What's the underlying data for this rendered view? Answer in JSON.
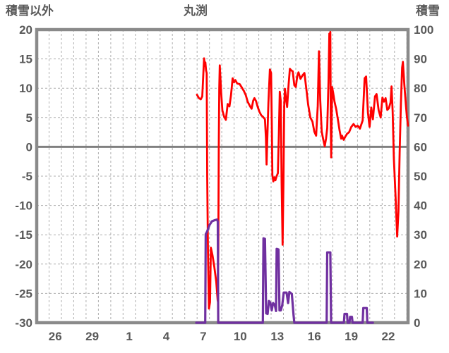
{
  "header": {
    "left_axis_label": "積雪以外",
    "title": "丸渕",
    "right_axis_label": "積雪"
  },
  "colors": {
    "red_series": "#FF0000",
    "purple_series": "#7030A0",
    "axis_frame": "#8A8A8A",
    "gridline": "#AFAFAF",
    "zero_line": "#808080",
    "tick_text": "#595959",
    "background": "#FFFFFF"
  },
  "chart_data": {
    "type": "line",
    "title": "丸渕",
    "grid": true,
    "legend": "none",
    "x_axis": {
      "range": [
        0,
        30.1
      ],
      "gridline_positions": [
        1,
        2,
        3,
        4,
        5,
        6,
        7,
        8,
        9,
        10,
        11,
        12,
        13,
        14,
        15,
        16,
        17,
        18,
        19,
        20,
        21,
        22,
        23,
        24,
        25,
        26,
        27,
        28,
        29,
        30
      ],
      "tick_positions": [
        1.5,
        4.5,
        7.5,
        10.5,
        13.5,
        16.5,
        19.5,
        22.5,
        25.5,
        28.5
      ],
      "tick_labels": [
        "26",
        "29",
        "1",
        "4",
        "7",
        "10",
        "13",
        "16",
        "19",
        "22"
      ]
    },
    "y_left": {
      "label": "積雪以外",
      "range": [
        -30,
        20
      ],
      "ticks": [
        20,
        15,
        10,
        5,
        0,
        -5,
        -10,
        -15,
        -20,
        -25,
        -30
      ],
      "zero_line": 0
    },
    "y_right": {
      "label": "積雪",
      "range": [
        0,
        100
      ],
      "ticks": [
        100,
        90,
        80,
        70,
        60,
        50,
        40,
        30,
        20,
        10,
        0
      ]
    },
    "series": [
      {
        "name": "sekisetsu-igai-red",
        "axis": "left",
        "color": "#FF0000",
        "width": 2.8,
        "points": [
          [
            12.99,
            8.9
          ],
          [
            13.15,
            8.3
          ],
          [
            13.3,
            8.1
          ],
          [
            13.42,
            8.6
          ],
          [
            13.52,
            13.2
          ],
          [
            13.57,
            15.1
          ],
          [
            13.62,
            13.8
          ],
          [
            13.67,
            14.4
          ],
          [
            13.73,
            13.0
          ],
          [
            13.78,
            12.6
          ],
          [
            13.82,
            -5
          ],
          [
            13.88,
            -18
          ],
          [
            13.96,
            -27.6
          ],
          [
            14.05,
            -26.5
          ],
          [
            14.12,
            -17.2
          ],
          [
            14.25,
            -18.5
          ],
          [
            14.4,
            -20.5
          ],
          [
            14.55,
            -23
          ],
          [
            14.67,
            -26.3
          ],
          [
            14.72,
            -18
          ],
          [
            14.76,
            0
          ],
          [
            14.8,
            10
          ],
          [
            14.84,
            13.9
          ],
          [
            14.95,
            9.2
          ],
          [
            15.05,
            6.2
          ],
          [
            15.2,
            5.1
          ],
          [
            15.33,
            4.6
          ],
          [
            15.48,
            7.3
          ],
          [
            15.62,
            6.9
          ],
          [
            15.75,
            8.8
          ],
          [
            15.88,
            11.7
          ],
          [
            16.0,
            11.0
          ],
          [
            16.1,
            11.4
          ],
          [
            16.25,
            10.8
          ],
          [
            16.45,
            10.7
          ],
          [
            16.6,
            10.2
          ],
          [
            16.8,
            9.5
          ],
          [
            16.95,
            8.8
          ],
          [
            17.1,
            7.7
          ],
          [
            17.3,
            6.9
          ],
          [
            17.42,
            6.5
          ],
          [
            17.55,
            7.9
          ],
          [
            17.65,
            8.3
          ],
          [
            17.78,
            7.8
          ],
          [
            17.9,
            6.9
          ],
          [
            18.05,
            6.0
          ],
          [
            18.2,
            5.4
          ],
          [
            18.35,
            5.1
          ],
          [
            18.5,
            4.7
          ],
          [
            18.58,
            1.5
          ],
          [
            18.63,
            -3.0
          ],
          [
            18.68,
            0.5
          ],
          [
            18.78,
            7.5
          ],
          [
            18.9,
            13.2
          ],
          [
            19.0,
            12.6
          ],
          [
            19.06,
            3
          ],
          [
            19.1,
            -4.8
          ],
          [
            19.18,
            -5.9
          ],
          [
            19.27,
            -5.2
          ],
          [
            19.35,
            -5.7
          ],
          [
            19.45,
            -5.0
          ],
          [
            19.55,
            -4.5
          ],
          [
            19.63,
            2
          ],
          [
            19.7,
            9.4
          ],
          [
            19.78,
            7.8
          ],
          [
            19.85,
            -6
          ],
          [
            19.93,
            -16.7
          ],
          [
            20.0,
            -6
          ],
          [
            20.06,
            7
          ],
          [
            20.12,
            9.9
          ],
          [
            20.2,
            8.4
          ],
          [
            20.3,
            6.8
          ],
          [
            20.42,
            10.6
          ],
          [
            20.52,
            13.3
          ],
          [
            20.65,
            13.0
          ],
          [
            20.75,
            12.9
          ],
          [
            20.88,
            10.5
          ],
          [
            21.0,
            10.2
          ],
          [
            21.12,
            12.1
          ],
          [
            21.22,
            12.7
          ],
          [
            21.38,
            11.6
          ],
          [
            21.55,
            12.2
          ],
          [
            21.7,
            12.6
          ],
          [
            21.85,
            10.0
          ],
          [
            22.0,
            7.2
          ],
          [
            22.18,
            5.0
          ],
          [
            22.35,
            4.3
          ],
          [
            22.5,
            2.6
          ],
          [
            22.65,
            1.9
          ],
          [
            22.78,
            7
          ],
          [
            22.88,
            16.3
          ],
          [
            22.98,
            8
          ],
          [
            23.1,
            2.6
          ],
          [
            23.22,
            1.3
          ],
          [
            23.35,
            0.1
          ],
          [
            23.45,
            1.4
          ],
          [
            23.55,
            3.2
          ],
          [
            23.65,
            11
          ],
          [
            23.72,
            19.3
          ],
          [
            23.76,
            18.8
          ],
          [
            23.8,
            19.6
          ],
          [
            23.84,
            3
          ],
          [
            23.87,
            -1.8
          ],
          [
            23.9,
            4
          ],
          [
            23.94,
            10.2
          ],
          [
            24.02,
            9.3
          ],
          [
            24.13,
            7.8
          ],
          [
            24.28,
            6.4
          ],
          [
            24.42,
            4.6
          ],
          [
            24.55,
            2.8
          ],
          [
            24.68,
            1.4
          ],
          [
            24.75,
            1.9
          ],
          [
            24.88,
            1.2
          ],
          [
            25.0,
            1.7
          ],
          [
            25.15,
            2.2
          ],
          [
            25.32,
            2.5
          ],
          [
            25.5,
            3.4
          ],
          [
            25.68,
            3.9
          ],
          [
            25.85,
            3.4
          ],
          [
            26.02,
            3.6
          ],
          [
            26.2,
            3.1
          ],
          [
            26.42,
            4.5
          ],
          [
            26.58,
            11.7
          ],
          [
            26.7,
            12.0
          ],
          [
            26.85,
            5.8
          ],
          [
            26.98,
            3.4
          ],
          [
            27.12,
            6.7
          ],
          [
            27.25,
            4.7
          ],
          [
            27.42,
            8.6
          ],
          [
            27.55,
            9.0
          ],
          [
            27.72,
            6.2
          ],
          [
            27.88,
            5.0
          ],
          [
            28.02,
            8.4
          ],
          [
            28.15,
            7.7
          ],
          [
            28.28,
            8.3
          ],
          [
            28.42,
            6.3
          ],
          [
            28.55,
            6.6
          ],
          [
            28.68,
            7.6
          ],
          [
            28.76,
            10.3
          ],
          [
            28.85,
            6
          ],
          [
            28.95,
            -2
          ],
          [
            29.1,
            -9
          ],
          [
            29.22,
            -15.3
          ],
          [
            29.32,
            -11
          ],
          [
            29.42,
            -1
          ],
          [
            29.52,
            7.5
          ],
          [
            29.62,
            13.5
          ],
          [
            29.68,
            14.5
          ],
          [
            29.8,
            10.5
          ],
          [
            29.92,
            7.2
          ],
          [
            30.0,
            5.2
          ],
          [
            30.1,
            3.6
          ]
        ]
      },
      {
        "name": "sekisetsu-purple",
        "axis": "right",
        "color": "#7030A0",
        "width": 3.2,
        "points": [
          [
            12.93,
            0
          ],
          [
            13.66,
            0
          ],
          [
            13.7,
            30.2
          ],
          [
            13.8,
            31.0
          ],
          [
            14.0,
            33.3
          ],
          [
            14.2,
            34.6
          ],
          [
            14.45,
            35.0
          ],
          [
            14.62,
            35.2
          ],
          [
            14.68,
            34.5
          ],
          [
            14.71,
            0
          ],
          [
            18.33,
            0
          ],
          [
            18.38,
            28.8
          ],
          [
            18.5,
            28.6
          ],
          [
            18.56,
            14
          ],
          [
            18.6,
            3.2
          ],
          [
            18.72,
            3.0
          ],
          [
            18.82,
            7.4
          ],
          [
            18.94,
            6.8
          ],
          [
            19.05,
            4.2
          ],
          [
            19.16,
            6.7
          ],
          [
            19.3,
            6.0
          ],
          [
            19.4,
            4.0
          ],
          [
            19.45,
            25.2
          ],
          [
            19.6,
            25.0
          ],
          [
            19.68,
            4.2
          ],
          [
            19.79,
            4.2
          ],
          [
            19.9,
            6.0
          ],
          [
            20.02,
            10.3
          ],
          [
            20.25,
            10.3
          ],
          [
            20.38,
            6.7
          ],
          [
            20.48,
            10.5
          ],
          [
            20.68,
            9.8
          ],
          [
            20.82,
            2.6
          ],
          [
            20.88,
            0
          ],
          [
            23.5,
            0
          ],
          [
            23.55,
            24.0
          ],
          [
            23.8,
            24.0
          ],
          [
            23.86,
            0
          ],
          [
            24.9,
            0
          ],
          [
            24.95,
            3.0
          ],
          [
            25.15,
            3.0
          ],
          [
            25.2,
            0
          ],
          [
            25.35,
            0
          ],
          [
            25.4,
            2.0
          ],
          [
            25.55,
            2.0
          ],
          [
            25.6,
            0
          ],
          [
            26.42,
            0
          ],
          [
            26.47,
            5.0
          ],
          [
            26.75,
            5.0
          ],
          [
            26.8,
            0
          ],
          [
            27.25,
            0
          ]
        ]
      }
    ]
  }
}
